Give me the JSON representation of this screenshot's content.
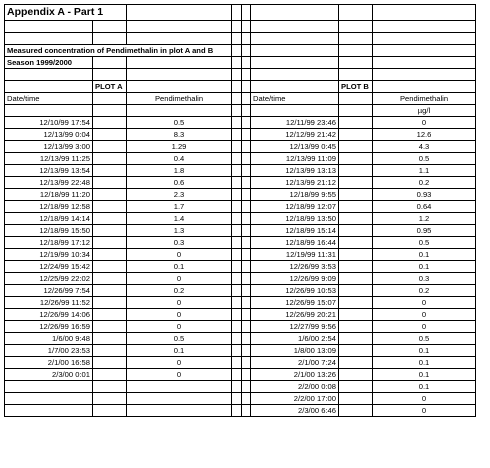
{
  "title": "Appendix A - Part 1",
  "subtitle": "Measured concentration of Pendimethalin in plot A and B",
  "season": "Season 1999/2000",
  "plot_a": {
    "label": "PLOT A",
    "col_datetime": "Date/time",
    "col_value": "Pendimethalin",
    "rows": [
      [
        "12/10/99 17:54",
        "0.5"
      ],
      [
        "12/13/99 0:04",
        "8.3"
      ],
      [
        "12/13/99 3:00",
        "1.29"
      ],
      [
        "12/13/99 11:25",
        "0.4"
      ],
      [
        "12/13/99 13:54",
        "1.8"
      ],
      [
        "12/13/99 22:48",
        "0.6"
      ],
      [
        "12/18/99 11:20",
        "2.3"
      ],
      [
        "12/18/99 12:58",
        "1.7"
      ],
      [
        "12/18/99 14:14",
        "1.4"
      ],
      [
        "12/18/99 15:50",
        "1.3"
      ],
      [
        "12/18/99 17:12",
        "0.3"
      ],
      [
        "12/19/99 10:34",
        "0"
      ],
      [
        "12/24/99 15:42",
        "0.1"
      ],
      [
        "12/25/99 22:02",
        "0"
      ],
      [
        "12/26/99 7:54",
        "0.2"
      ],
      [
        "12/26/99 11:52",
        "0"
      ],
      [
        "12/26/99 14:06",
        "0"
      ],
      [
        "12/26/99 16:59",
        "0"
      ],
      [
        "1/6/00 9:48",
        "0.5"
      ],
      [
        "1/7/00 23:53",
        "0.1"
      ],
      [
        "2/1/00 16:58",
        "0"
      ],
      [
        "2/3/00 0:01",
        "0"
      ]
    ]
  },
  "plot_b": {
    "label": "PLOT B",
    "col_datetime": "Date/time",
    "col_value": "Pendimethalin",
    "unit": "µg/l",
    "rows": [
      [
        "12/11/99 23:46",
        "0"
      ],
      [
        "12/12/99 21:42",
        "12.6"
      ],
      [
        "12/13/99 0:45",
        "4.3"
      ],
      [
        "12/13/99 11:09",
        "0.5"
      ],
      [
        "12/13/99 13:13",
        "1.1"
      ],
      [
        "12/13/99 21:12",
        "0.2"
      ],
      [
        "12/18/99 9:55",
        "0.93"
      ],
      [
        "12/18/99 12:07",
        "0.64"
      ],
      [
        "12/18/99 13:50",
        "1.2"
      ],
      [
        "12/18/99 15:14",
        "0.95"
      ],
      [
        "12/18/99 16:44",
        "0.5"
      ],
      [
        "12/19/99 11:31",
        "0.1"
      ],
      [
        "12/26/99 3:53",
        "0.1"
      ],
      [
        "12/26/99 9:09",
        "0.3"
      ],
      [
        "12/26/99 10:53",
        "0.2"
      ],
      [
        "12/26/99 15:07",
        "0"
      ],
      [
        "12/26/99 20:21",
        "0"
      ],
      [
        "12/27/99 9:56",
        "0"
      ],
      [
        "1/6/00 2:54",
        "0.5"
      ],
      [
        "1/8/00 13:09",
        "0.1"
      ],
      [
        "2/1/00 7:24",
        "0.1"
      ],
      [
        "2/1/00 13:26",
        "0.1"
      ],
      [
        "2/2/00 0:08",
        "0.1"
      ],
      [
        "2/2/00 17:00",
        "0"
      ],
      [
        "2/3/00 6:46",
        "0"
      ]
    ]
  }
}
